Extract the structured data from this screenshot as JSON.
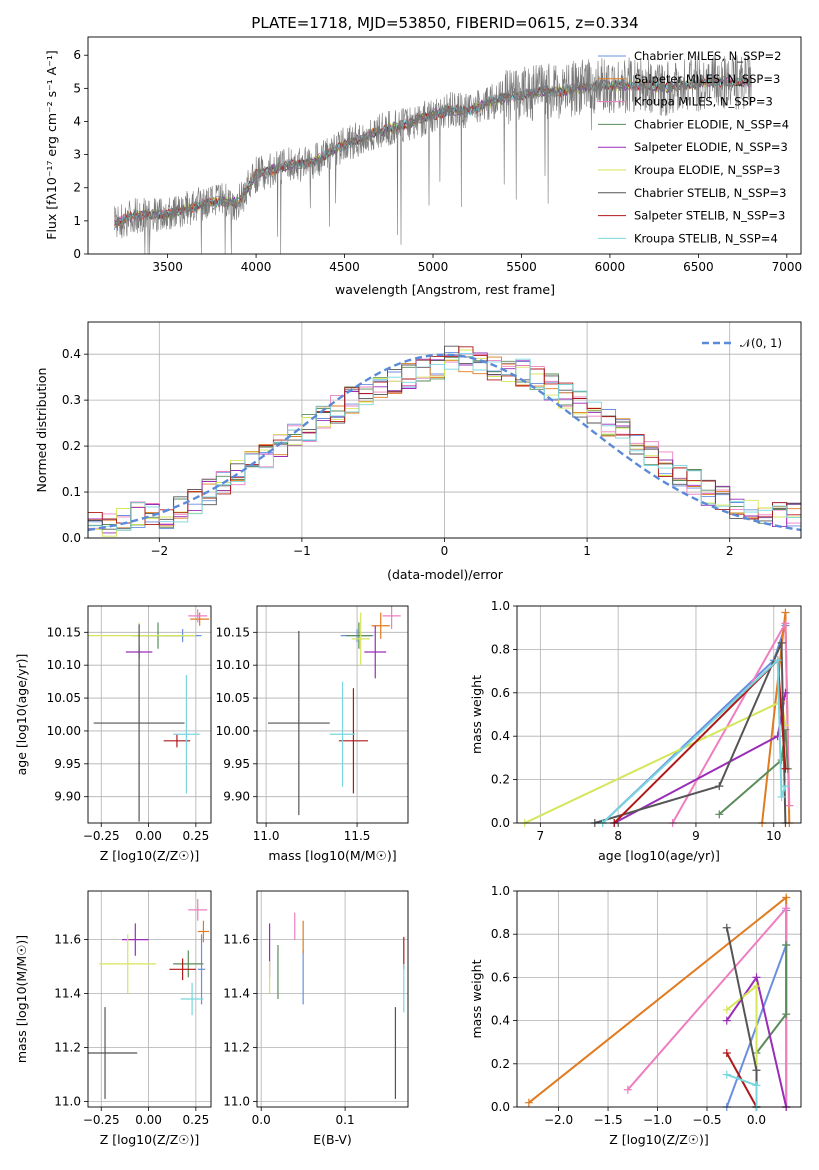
{
  "title": "PLATE=1718, MJD=53850, FIBERID=0615, z=0.334",
  "colors": {
    "c1": "#6a8fde",
    "c2": "#e07b1f",
    "c3": "#ee7ec0",
    "c4": "#5a8c5a",
    "c5": "#9a2db8",
    "c6": "#d6e65a",
    "c7": "#555555",
    "c8": "#b01818",
    "c9": "#79d6de"
  },
  "chart_data": [
    {
      "type": "line",
      "name": "spectrum",
      "xlabel": "wavelength [Angstrom, rest frame]",
      "ylabel": "Flux [f_λ 10^-17 erg cm^-2 s^-1 A^-1]",
      "xlim": [
        3050,
        7080
      ],
      "ylim": [
        0,
        6.55
      ],
      "xticks": [
        "3500",
        "4000",
        "4500",
        "5000",
        "5500",
        "6000",
        "6500",
        "7000"
      ],
      "yticks": [
        "0",
        "1",
        "2",
        "3",
        "4",
        "5",
        "6"
      ],
      "legend_position": "upper-right",
      "legend": [
        "Chabrier MILES, N_SSP=2",
        "Salpeter MILES, N_SSP=3",
        "Kroupa MILES, N_SSP=3",
        "Chabrier ELODIE, N_SSP=4",
        "Salpeter ELODIE, N_SSP=3",
        "Kroupa ELODIE, N_SSP=3",
        "Chabrier STELIB, N_SSP=3",
        "Salpeter STELIB, N_SSP=3",
        "Kroupa STELIB, N_SSP=4"
      ],
      "data_start": 3200,
      "data_end": 6800,
      "continuum": [
        [
          3200,
          0.9
        ],
        [
          3300,
          1.15
        ],
        [
          3400,
          1.2
        ],
        [
          3500,
          1.2
        ],
        [
          3600,
          1.35
        ],
        [
          3700,
          1.5
        ],
        [
          3800,
          1.6
        ],
        [
          3900,
          1.55
        ],
        [
          4000,
          2.4
        ],
        [
          4100,
          2.55
        ],
        [
          4200,
          2.7
        ],
        [
          4300,
          2.75
        ],
        [
          4400,
          3.0
        ],
        [
          4500,
          3.3
        ],
        [
          4600,
          3.5
        ],
        [
          4700,
          3.7
        ],
        [
          4800,
          3.85
        ],
        [
          4900,
          4.0
        ],
        [
          5000,
          4.2
        ],
        [
          5100,
          4.35
        ],
        [
          5200,
          4.3
        ],
        [
          5300,
          4.55
        ],
        [
          5400,
          4.7
        ],
        [
          5500,
          4.8
        ],
        [
          5600,
          4.9
        ],
        [
          5700,
          4.9
        ],
        [
          5800,
          5.0
        ],
        [
          5900,
          5.05
        ],
        [
          6000,
          5.1
        ],
        [
          6100,
          5.1
        ],
        [
          6200,
          5.1
        ],
        [
          6300,
          5.0
        ],
        [
          6400,
          5.1
        ],
        [
          6500,
          5.15
        ],
        [
          6600,
          5.2
        ],
        [
          6700,
          5.2
        ],
        [
          6800,
          5.2
        ]
      ],
      "grid": false
    },
    {
      "type": "line",
      "name": "residual-histogram",
      "xlabel": "(data-model)/error",
      "ylabel": "Normed distribution",
      "xlim": [
        -2.5,
        2.5
      ],
      "ylim": [
        0,
        0.47
      ],
      "xticks": [
        "−2",
        "−1",
        "0",
        "1",
        "2"
      ],
      "yticks": [
        "0.0",
        "0.1",
        "0.2",
        "0.3",
        "0.4"
      ],
      "legend": [
        "𝒩(0, 1)"
      ],
      "legend_position": "upper-right",
      "reference_curve": "gaussian mean 0 sigma 1",
      "histogram_bins": [
        -2.5,
        -2.4,
        -2.3,
        -2.2,
        -2.1,
        -2.0,
        -1.9,
        -1.8,
        -1.7,
        -1.6,
        -1.5,
        -1.4,
        -1.3,
        -1.2,
        -1.1,
        -1.0,
        -0.9,
        -0.8,
        -0.7,
        -0.6,
        -0.5,
        -0.4,
        -0.3,
        -0.2,
        -0.1,
        0.0,
        0.1,
        0.2,
        0.3,
        0.4,
        0.5,
        0.6,
        0.7,
        0.8,
        0.9,
        1.0,
        1.1,
        1.2,
        1.3,
        1.4,
        1.5,
        1.6,
        1.7,
        1.8,
        1.9,
        2.0,
        2.1,
        2.2,
        2.3,
        2.4,
        2.5
      ],
      "histogram_mean_density": [
        0.03,
        0.03,
        0.04,
        0.05,
        0.05,
        0.05,
        0.06,
        0.08,
        0.1,
        0.12,
        0.14,
        0.16,
        0.18,
        0.2,
        0.22,
        0.24,
        0.26,
        0.28,
        0.3,
        0.32,
        0.33,
        0.34,
        0.35,
        0.36,
        0.37,
        0.39,
        0.39,
        0.38,
        0.37,
        0.37,
        0.36,
        0.35,
        0.33,
        0.31,
        0.29,
        0.27,
        0.25,
        0.23,
        0.2,
        0.18,
        0.16,
        0.14,
        0.12,
        0.1,
        0.09,
        0.07,
        0.06,
        0.05,
        0.05,
        0.05
      ],
      "grid": true
    },
    {
      "type": "scatter",
      "name": "age-vs-Z",
      "xlabel": "Z [log10(Z/Z☉)]",
      "ylabel": "age  [log10(age/yr)]",
      "xlim": [
        -0.32,
        0.33
      ],
      "ylim": [
        9.86,
        10.19
      ],
      "xticks": [
        "−0.25",
        "0.00",
        "0.25"
      ],
      "yticks": [
        "9.90",
        "9.95",
        "10.00",
        "10.05",
        "10.10",
        "10.15"
      ],
      "points": [
        {
          "x": 0.18,
          "y": 10.145,
          "xerr": 0.1,
          "yerr": 0.01,
          "c": "c1"
        },
        {
          "x": 0.27,
          "y": 10.17,
          "xerr": 0.05,
          "yerr": 0.01,
          "c": "c2"
        },
        {
          "x": 0.26,
          "y": 10.175,
          "xerr": 0.05,
          "yerr": 0.01,
          "c": "c3"
        },
        {
          "x": 0.05,
          "y": 10.145,
          "xerr": 0.14,
          "yerr": 0.02,
          "c": "c4"
        },
        {
          "x": -0.05,
          "y": 10.12,
          "xerr": 0.07,
          "yerr": 0.01,
          "c": "c5"
        },
        {
          "x": -0.05,
          "y": 10.145,
          "xerr": 0.3,
          "yerr": 0.02,
          "c": "c6"
        },
        {
          "x": -0.05,
          "y": 10.012,
          "xerr": 0.24,
          "yerr": 0.15,
          "c": "c7"
        },
        {
          "x": 0.15,
          "y": 9.985,
          "xerr": 0.07,
          "yerr": 0.01,
          "c": "c8"
        },
        {
          "x": 0.2,
          "y": 9.995,
          "xerr": 0.07,
          "yerr": 0.09,
          "c": "c9"
        }
      ],
      "grid": true
    },
    {
      "type": "scatter",
      "name": "age-vs-mass",
      "xlabel": "mass [log10(M/M☉)]",
      "ylabel": "",
      "xlim": [
        10.95,
        11.78
      ],
      "ylim": [
        9.86,
        10.19
      ],
      "xticks": [
        "11.0",
        "11.5"
      ],
      "yticks": [
        "9.90",
        "9.95",
        "10.00",
        "10.05",
        "10.10",
        "10.15"
      ],
      "points": [
        {
          "x": 11.5,
          "y": 10.145,
          "xerr": 0.09,
          "yerr": 0.01,
          "c": "c1"
        },
        {
          "x": 11.63,
          "y": 10.16,
          "xerr": 0.05,
          "yerr": 0.02,
          "c": "c2"
        },
        {
          "x": 11.69,
          "y": 10.175,
          "xerr": 0.05,
          "yerr": 0.02,
          "c": "c3"
        },
        {
          "x": 11.51,
          "y": 10.145,
          "xerr": 0.07,
          "yerr": 0.02,
          "c": "c4"
        },
        {
          "x": 11.6,
          "y": 10.12,
          "xerr": 0.06,
          "yerr": 0.04,
          "c": "c5"
        },
        {
          "x": 11.52,
          "y": 10.14,
          "xerr": 0.05,
          "yerr": 0.04,
          "c": "c6"
        },
        {
          "x": 11.18,
          "y": 10.012,
          "xerr": 0.17,
          "yerr": 0.14,
          "c": "c7"
        },
        {
          "x": 11.48,
          "y": 9.985,
          "xerr": 0.08,
          "yerr": 0.08,
          "c": "c8"
        },
        {
          "x": 11.42,
          "y": 9.995,
          "xerr": 0.07,
          "yerr": 0.08,
          "c": "c9"
        }
      ],
      "grid": true
    },
    {
      "type": "line",
      "name": "mass-weight-vs-age",
      "xlabel": "age  [log10(age/yr)]",
      "ylabel": "mass weight",
      "xlim": [
        6.7,
        10.35
      ],
      "ylim": [
        0,
        1.0
      ],
      "xticks": [
        "7",
        "8",
        "9",
        "10"
      ],
      "yticks": [
        "0.0",
        "0.2",
        "0.4",
        "0.6",
        "0.8",
        "1.0"
      ],
      "series": [
        {
          "c": "c1",
          "x": [
            7.8,
            10.0,
            10.15
          ],
          "y": [
            0.0,
            0.75,
            0.91
          ]
        },
        {
          "c": "c2",
          "x": [
            9.85,
            10.15,
            10.2
          ],
          "y": [
            0.0,
            0.97,
            0.0
          ]
        },
        {
          "c": "c3",
          "x": [
            8.7,
            10.15,
            10.2
          ],
          "y": [
            0.0,
            0.92,
            0.08
          ]
        },
        {
          "c": "c4",
          "x": [
            9.3,
            10.1,
            10.15,
            10.18
          ],
          "y": [
            0.04,
            0.29,
            0.43,
            0.25
          ]
        },
        {
          "c": "c5",
          "x": [
            7.95,
            10.05,
            10.15
          ],
          "y": [
            0.0,
            0.4,
            0.6
          ]
        },
        {
          "c": "c6",
          "x": [
            6.8,
            10.1,
            10.15
          ],
          "y": [
            0.0,
            0.56,
            0.45
          ]
        },
        {
          "c": "c7",
          "x": [
            7.7,
            9.3,
            10.1,
            10.15
          ],
          "y": [
            0.0,
            0.17,
            0.83,
            0.0
          ]
        },
        {
          "c": "c8",
          "x": [
            7.95,
            10.05,
            10.15
          ],
          "y": [
            0.0,
            0.75,
            0.25
          ]
        },
        {
          "c": "c9",
          "x": [
            7.8,
            10.05,
            10.1,
            10.15
          ],
          "y": [
            0.0,
            0.75,
            0.12,
            0.17
          ]
        }
      ],
      "grid": true
    },
    {
      "type": "scatter",
      "name": "mass-vs-Z",
      "xlabel": "Z [log10(Z/Z☉)]",
      "ylabel": "mass [log10(M/M☉)]",
      "xlim": [
        -0.32,
        0.33
      ],
      "ylim": [
        10.98,
        11.78
      ],
      "xticks": [
        "−0.25",
        "0.00",
        "0.25"
      ],
      "yticks": [
        "11.0",
        "11.2",
        "11.4",
        "11.6"
      ],
      "points": [
        {
          "x": 0.28,
          "y": 11.49,
          "xerr": 0.02,
          "yerr": 0.13,
          "c": "c1"
        },
        {
          "x": 0.29,
          "y": 11.63,
          "xerr": 0.03,
          "yerr": 0.04,
          "c": "c2"
        },
        {
          "x": 0.26,
          "y": 11.71,
          "xerr": 0.05,
          "yerr": 0.04,
          "c": "c3"
        },
        {
          "x": 0.21,
          "y": 11.51,
          "xerr": 0.08,
          "yerr": 0.05,
          "c": "c4"
        },
        {
          "x": -0.07,
          "y": 11.6,
          "xerr": 0.07,
          "yerr": 0.06,
          "c": "c5"
        },
        {
          "x": -0.11,
          "y": 11.51,
          "xerr": 0.15,
          "yerr": 0.11,
          "c": "c6"
        },
        {
          "x": -0.23,
          "y": 11.18,
          "xerr": 0.17,
          "yerr": 0.17,
          "c": "c7"
        },
        {
          "x": 0.18,
          "y": 11.49,
          "xerr": 0.07,
          "yerr": 0.04,
          "c": "c8"
        },
        {
          "x": 0.23,
          "y": 11.38,
          "xerr": 0.06,
          "yerr": 0.06,
          "c": "c9"
        }
      ],
      "grid": true
    },
    {
      "type": "scatter",
      "name": "mass-vs-EBV",
      "xlabel": "E(B-V)",
      "ylabel": "",
      "xlim": [
        -0.005,
        0.175
      ],
      "ylim": [
        10.98,
        11.78
      ],
      "xticks": [
        "0.0",
        "0.1"
      ],
      "yticks": [
        "11.0",
        "11.2",
        "11.4",
        "11.6"
      ],
      "points": [
        {
          "x": 0.05,
          "y": 11.46,
          "xerr": 0.0,
          "yerr": 0.1,
          "c": "c1"
        },
        {
          "x": 0.05,
          "y": 11.61,
          "xerr": 0.0,
          "yerr": 0.06,
          "c": "c2"
        },
        {
          "x": 0.04,
          "y": 11.65,
          "xerr": 0.0,
          "yerr": 0.05,
          "c": "c3"
        },
        {
          "x": 0.02,
          "y": 11.48,
          "xerr": 0.0,
          "yerr": 0.1,
          "c": "c4"
        },
        {
          "x": 0.01,
          "y": 11.56,
          "xerr": 0.0,
          "yerr": 0.1,
          "c": "c5"
        },
        {
          "x": 0.01,
          "y": 11.46,
          "xerr": 0.0,
          "yerr": 0.06,
          "c": "c6"
        },
        {
          "x": 0.16,
          "y": 11.18,
          "xerr": 0.0,
          "yerr": 0.17,
          "c": "c7"
        },
        {
          "x": 0.17,
          "y": 11.55,
          "xerr": 0.0,
          "yerr": 0.06,
          "c": "c8"
        },
        {
          "x": 0.17,
          "y": 11.42,
          "xerr": 0.0,
          "yerr": 0.09,
          "c": "c9"
        }
      ],
      "grid": true
    },
    {
      "type": "line",
      "name": "mass-weight-vs-Z",
      "xlabel": "Z [log10(Z/Z☉)]",
      "ylabel": "mass weight",
      "xlim": [
        -2.42,
        0.45
      ],
      "ylim": [
        0,
        1.0
      ],
      "xticks": [
        "−2.0",
        "−1.5",
        "−1.0",
        "−0.5",
        "0.0"
      ],
      "yticks": [
        "0.0",
        "0.2",
        "0.4",
        "0.6",
        "0.8",
        "1.0"
      ],
      "series": [
        {
          "c": "c1",
          "x": [
            -0.3,
            0.3,
            0.3
          ],
          "y": [
            0.0,
            0.75,
            0.91
          ]
        },
        {
          "c": "c2",
          "x": [
            -2.3,
            0.3,
            0.3
          ],
          "y": [
            0.02,
            0.97,
            0.0
          ]
        },
        {
          "c": "c3",
          "x": [
            -1.3,
            0.3,
            0.3
          ],
          "y": [
            0.08,
            0.92,
            0.0
          ]
        },
        {
          "c": "c4",
          "x": [
            0.0,
            0.3,
            0.3
          ],
          "y": [
            0.25,
            0.43,
            0.75
          ]
        },
        {
          "c": "c5",
          "x": [
            -0.3,
            0.0,
            0.3
          ],
          "y": [
            0.4,
            0.6,
            0.0
          ]
        },
        {
          "c": "c6",
          "x": [
            -0.3,
            0.0,
            0.0
          ],
          "y": [
            0.45,
            0.56,
            0.0
          ]
        },
        {
          "c": "c7",
          "x": [
            -0.3,
            0.0,
            0.0
          ],
          "y": [
            0.83,
            0.17,
            0.0
          ]
        },
        {
          "c": "c8",
          "x": [
            -0.3,
            0.0,
            0.0
          ],
          "y": [
            0.25,
            0.0,
            0.0
          ]
        },
        {
          "c": "c9",
          "x": [
            -0.3,
            0.0,
            0.0
          ],
          "y": [
            0.15,
            0.1,
            0.0
          ]
        }
      ],
      "grid": true
    }
  ]
}
